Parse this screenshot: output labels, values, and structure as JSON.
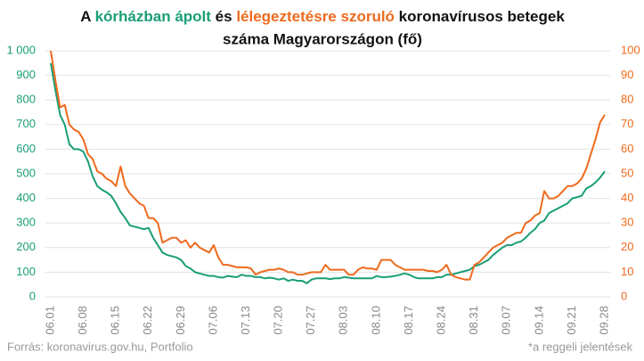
{
  "chart_data": {
    "type": "line",
    "title": [
      "A ",
      "kórházban ápolt",
      " és ",
      "lélegeztetésre szoruló",
      " koronavírusos betegek",
      "száma Magyarországon  (fő)"
    ],
    "title_colors": [
      "#111111",
      "#1a9e77",
      "#111111",
      "#ee6a1d",
      "#111111",
      "#111111"
    ],
    "source": "Forrás: koronavirus.gov.hu, Portfolio",
    "note": "*a reggeli jelentések",
    "categories": [
      "06.01",
      null,
      null,
      null,
      null,
      null,
      null,
      "06.08",
      null,
      null,
      null,
      null,
      null,
      null,
      "06.15",
      null,
      null,
      null,
      null,
      null,
      null,
      "06.22",
      null,
      null,
      null,
      null,
      null,
      null,
      "06.29",
      null,
      null,
      null,
      null,
      null,
      null,
      "07.06",
      null,
      null,
      null,
      null,
      null,
      null,
      "07.13",
      null,
      null,
      null,
      null,
      null,
      null,
      "07.20",
      null,
      null,
      null,
      null,
      null,
      null,
      "07.27",
      null,
      null,
      null,
      null,
      null,
      null,
      "08.03",
      null,
      null,
      null,
      null,
      null,
      null,
      "08.10",
      null,
      null,
      null,
      null,
      null,
      null,
      "08.17",
      null,
      null,
      null,
      null,
      null,
      null,
      "08.24",
      null,
      null,
      null,
      null,
      null,
      null,
      "08.31",
      null,
      null,
      null,
      null,
      null,
      null,
      "09.07",
      null,
      null,
      null,
      null,
      null,
      null,
      "09.14",
      null,
      null,
      null,
      null,
      null,
      null,
      "09.21",
      null,
      null,
      null,
      null,
      null,
      null,
      "09.28"
    ],
    "series": [
      {
        "color": "#1a9e77",
        "axis": "y",
        "values": [
          950,
          840,
          740,
          700,
          620,
          600,
          600,
          590,
          550,
          490,
          450,
          435,
          425,
          410,
          380,
          345,
          320,
          290,
          285,
          280,
          275,
          280,
          240,
          210,
          180,
          170,
          165,
          160,
          150,
          125,
          115,
          100,
          95,
          90,
          85,
          85,
          80,
          78,
          85,
          82,
          80,
          90,
          85,
          85,
          80,
          80,
          75,
          78,
          75,
          70,
          75,
          65,
          70,
          65,
          65,
          55,
          70,
          75,
          75,
          75,
          72,
          75,
          75,
          80,
          78,
          75,
          75,
          75,
          75,
          75,
          85,
          80,
          80,
          82,
          85,
          90,
          95,
          90,
          80,
          75,
          75,
          75,
          75,
          80,
          80,
          90,
          90,
          95,
          100,
          105,
          110,
          125,
          130,
          140,
          150,
          170,
          185,
          200,
          210,
          210,
          220,
          225,
          240,
          260,
          275,
          300,
          310,
          340,
          350,
          360,
          370,
          380,
          400,
          405,
          410,
          440,
          450,
          465,
          485,
          510
        ]
      },
      {
        "color": "#ee6a1d",
        "axis": "y2",
        "values": [
          100,
          88,
          77,
          78,
          70,
          68,
          67,
          64,
          58,
          56,
          51,
          50,
          48,
          47,
          45,
          53,
          45,
          42,
          40,
          38,
          37,
          32,
          32,
          30,
          22,
          23,
          24,
          24,
          22,
          23,
          20,
          22,
          20,
          19,
          18,
          21,
          16,
          13,
          13,
          12.5,
          12,
          12,
          12,
          11.5,
          9,
          10,
          10.5,
          11,
          11,
          11.5,
          11,
          10,
          10,
          9,
          9,
          9.5,
          10,
          10,
          10,
          13,
          11,
          11,
          11,
          11,
          9,
          9,
          11,
          12,
          11.5,
          11.5,
          11,
          15,
          15,
          15,
          13,
          12,
          11,
          11,
          11,
          11,
          11,
          10.5,
          10.5,
          10,
          11,
          13,
          9,
          8,
          7.5,
          7,
          7,
          13,
          14,
          16,
          18,
          20,
          21,
          22,
          24,
          25,
          26,
          26,
          30,
          31,
          33,
          34,
          43,
          40,
          40,
          41,
          43,
          45,
          45,
          46,
          48,
          52,
          58,
          64,
          71,
          74
        ]
      }
    ],
    "ylim": [
      0,
      1000
    ],
    "yticks": [
      0,
      100,
      200,
      300,
      400,
      500,
      600,
      700,
      800,
      900,
      {
        "value": 1000,
        "label": "1 000"
      }
    ],
    "y2lim": [
      0,
      100
    ],
    "y2ticks": [
      0,
      10,
      20,
      30,
      40,
      50,
      60,
      70,
      80,
      90,
      100
    ],
    "grid": true
  }
}
